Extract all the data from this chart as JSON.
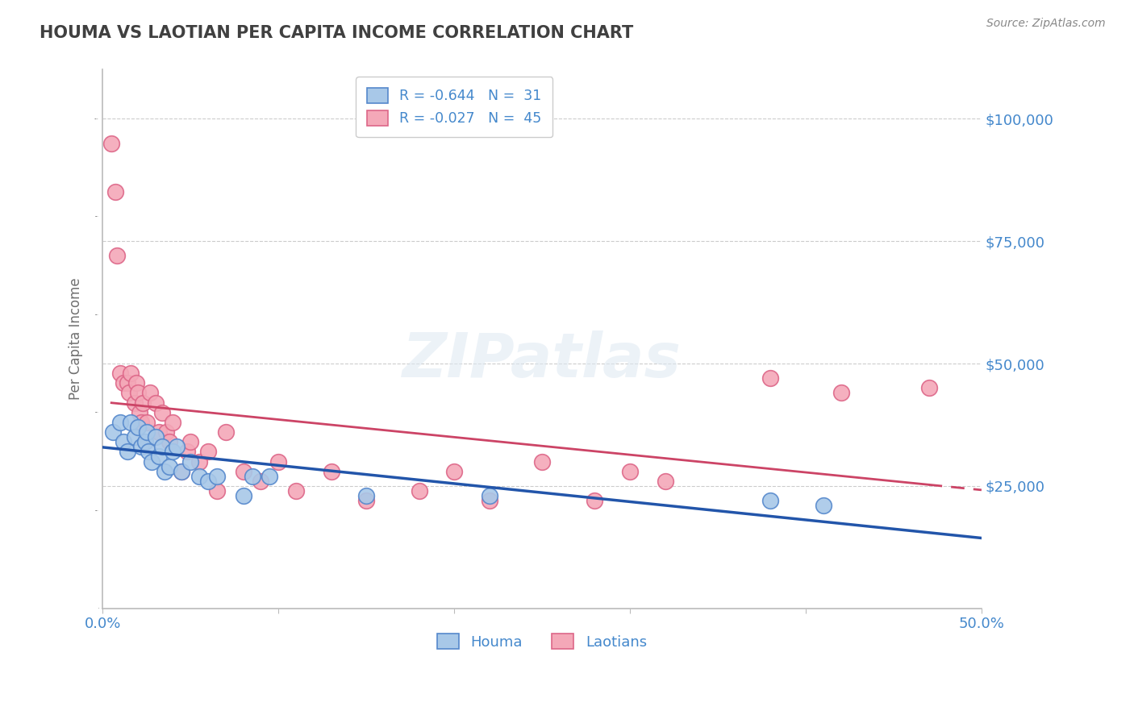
{
  "title": "HOUMA VS LAOTIAN PER CAPITA INCOME CORRELATION CHART",
  "source_text": "Source: ZipAtlas.com",
  "ylabel": "Per Capita Income",
  "xmin": 0.0,
  "xmax": 0.5,
  "ymin": 0,
  "ymax": 110000,
  "yticks": [
    0,
    25000,
    50000,
    75000,
    100000
  ],
  "ytick_labels": [
    "",
    "$25,000",
    "$50,000",
    "$75,000",
    "$100,000"
  ],
  "xticks": [
    0.0,
    0.1,
    0.2,
    0.3,
    0.4,
    0.5
  ],
  "xtick_labels": [
    "0.0%",
    "",
    "",
    "",
    "",
    "50.0%"
  ],
  "legend_r_houma": "-0.644",
  "legend_n_houma": "31",
  "legend_r_laotian": "-0.027",
  "legend_n_laotian": "45",
  "houma_color": "#a8c8e8",
  "laotian_color": "#f4a8b8",
  "houma_edge_color": "#5588cc",
  "laotian_edge_color": "#dd6688",
  "houma_line_color": "#2255aa",
  "laotian_line_color": "#cc4466",
  "watermark": "ZIPatlas",
  "houma_x": [
    0.006,
    0.01,
    0.012,
    0.014,
    0.016,
    0.018,
    0.02,
    0.022,
    0.024,
    0.025,
    0.026,
    0.028,
    0.03,
    0.032,
    0.034,
    0.035,
    0.038,
    0.04,
    0.042,
    0.045,
    0.05,
    0.055,
    0.06,
    0.065,
    0.08,
    0.085,
    0.095,
    0.15,
    0.22,
    0.38,
    0.41
  ],
  "houma_y": [
    36000,
    38000,
    34000,
    32000,
    38000,
    35000,
    37000,
    33000,
    34000,
    36000,
    32000,
    30000,
    35000,
    31000,
    33000,
    28000,
    29000,
    32000,
    33000,
    28000,
    30000,
    27000,
    26000,
    27000,
    23000,
    27000,
    27000,
    23000,
    23000,
    22000,
    21000
  ],
  "laotian_x": [
    0.005,
    0.007,
    0.008,
    0.01,
    0.012,
    0.014,
    0.015,
    0.016,
    0.018,
    0.019,
    0.02,
    0.021,
    0.022,
    0.023,
    0.025,
    0.027,
    0.03,
    0.032,
    0.034,
    0.036,
    0.038,
    0.04,
    0.045,
    0.048,
    0.05,
    0.055,
    0.06,
    0.065,
    0.07,
    0.08,
    0.09,
    0.1,
    0.11,
    0.13,
    0.15,
    0.18,
    0.2,
    0.22,
    0.25,
    0.28,
    0.3,
    0.32,
    0.38,
    0.42,
    0.47
  ],
  "laotian_y": [
    95000,
    85000,
    72000,
    48000,
    46000,
    46000,
    44000,
    48000,
    42000,
    46000,
    44000,
    40000,
    38000,
    42000,
    38000,
    44000,
    42000,
    36000,
    40000,
    36000,
    34000,
    38000,
    28000,
    32000,
    34000,
    30000,
    32000,
    24000,
    36000,
    28000,
    26000,
    30000,
    24000,
    28000,
    22000,
    24000,
    28000,
    22000,
    30000,
    22000,
    28000,
    26000,
    47000,
    44000,
    45000
  ],
  "background_color": "#ffffff",
  "grid_color": "#cccccc",
  "title_color": "#404040",
  "axis_label_color": "#707070",
  "tick_label_color": "#4488cc",
  "source_color": "#888888"
}
